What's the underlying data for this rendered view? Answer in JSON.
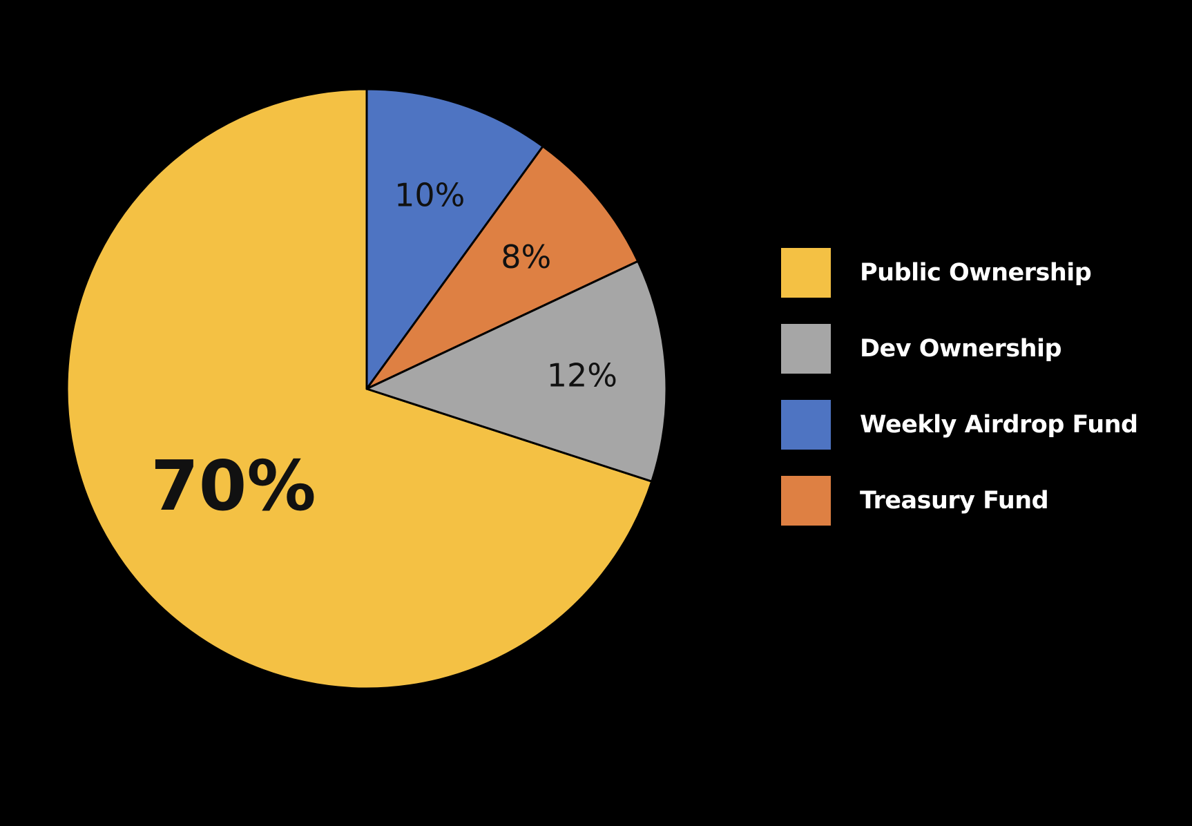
{
  "chart_data": {
    "type": "pie",
    "categories": [
      "Public Ownership",
      "Weekly Airdrop Fund",
      "Treasury Fund",
      "Dev Ownership"
    ],
    "values": [
      70,
      10,
      8,
      12
    ],
    "labels": [
      "70%",
      "10%",
      "8%",
      "12%"
    ],
    "colors": [
      "#F4C144",
      "#4E74C2",
      "#DE8043",
      "#A6A6A6"
    ],
    "legend_position": "right",
    "legend": [
      {
        "label": "Public Ownership",
        "color": "#F4C144"
      },
      {
        "label": "Dev Ownership",
        "color": "#A6A6A6"
      },
      {
        "label": "Weekly Airdrop Fund",
        "color": "#4E74C2"
      },
      {
        "label": "Treasury Fund",
        "color": "#DE8043"
      }
    ]
  }
}
